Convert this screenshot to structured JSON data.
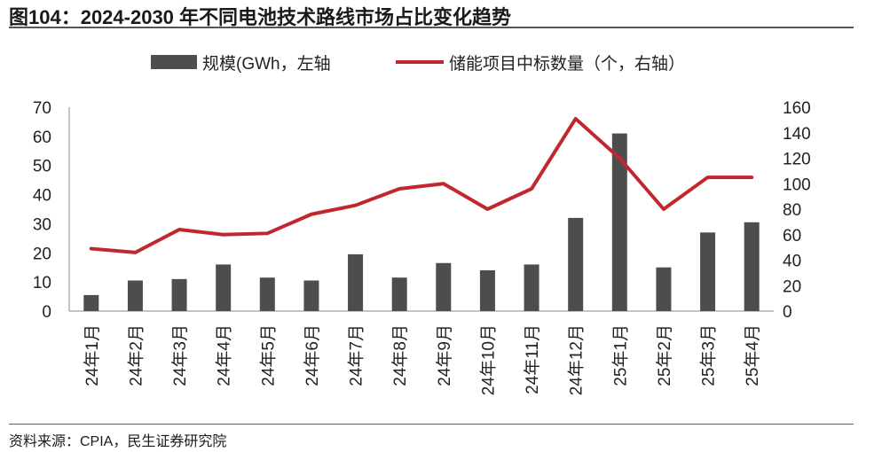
{
  "title": "图104：2024-2030 年不同电池技术路线市场占比变化趋势",
  "source": "资料来源：CPIA，民生证券研究院",
  "chart_data": {
    "type": "bar+line",
    "categories": [
      "24年1月",
      "24年2月",
      "24年3月",
      "24年4月",
      "24年5月",
      "24年6月",
      "24年7月",
      "24年8月",
      "24年9月",
      "24年10月",
      "24年11月",
      "24年12月",
      "25年1月",
      "25年2月",
      "25年3月",
      "25年4月"
    ],
    "series": [
      {
        "name": "规模(GWh，左轴",
        "type": "bar",
        "axis": "left",
        "color": "#4d4d4d",
        "values": [
          5.5,
          10.5,
          11,
          16,
          11.5,
          10.5,
          19.5,
          11.5,
          16.5,
          14,
          16,
          32,
          61,
          15,
          27,
          30.5
        ]
      },
      {
        "name": "储能项目中标数量（个，右轴）",
        "type": "line",
        "axis": "right",
        "color": "#c0282d",
        "values": [
          49,
          46,
          64,
          60,
          61,
          76,
          83,
          96,
          100,
          80,
          96,
          151,
          120,
          80,
          105,
          105
        ]
      }
    ],
    "y_left": {
      "min": 0,
      "max": 70,
      "ticks": [
        0,
        10,
        20,
        30,
        40,
        50,
        60,
        70
      ]
    },
    "y_right": {
      "min": 0,
      "max": 160,
      "ticks": [
        0,
        20,
        40,
        60,
        80,
        100,
        120,
        140,
        160
      ]
    },
    "legend": "top-center"
  }
}
